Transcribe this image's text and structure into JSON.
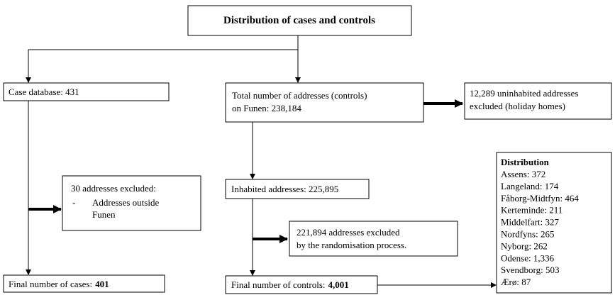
{
  "title": "Distribution of cases and controls",
  "case_database": "Case database: 431",
  "total_addresses": [
    "Total number of addresses (controls)",
    "on Funen: 238,184"
  ],
  "uninhabited": [
    "12,289 uninhabited addresses",
    "excluded (holiday homes)"
  ],
  "excluded_outside": {
    "heading": "30 addresses excluded:",
    "bullet": "-",
    "item": [
      "Addresses outside",
      "Funen"
    ]
  },
  "inhabited": "Inhabited addresses: 225,895",
  "randomisation": [
    "221,894 addresses excluded",
    "by the randomisation process."
  ],
  "final_cases": {
    "label": "Final number of cases:",
    "value": "401"
  },
  "final_controls": {
    "label": "Final number of controls:",
    "value": "4,001"
  },
  "distribution": {
    "heading": "Distribution",
    "items": [
      "Assens: 372",
      "Langeland: 174",
      "Fåborg-Midtfyn: 464",
      "Kerteminde: 211",
      "Middelfart: 327",
      "Nordfyns: 265",
      "Nyborg: 262",
      "Odense: 1,336",
      "Svendborg: 503",
      "Ærø: 87"
    ]
  }
}
